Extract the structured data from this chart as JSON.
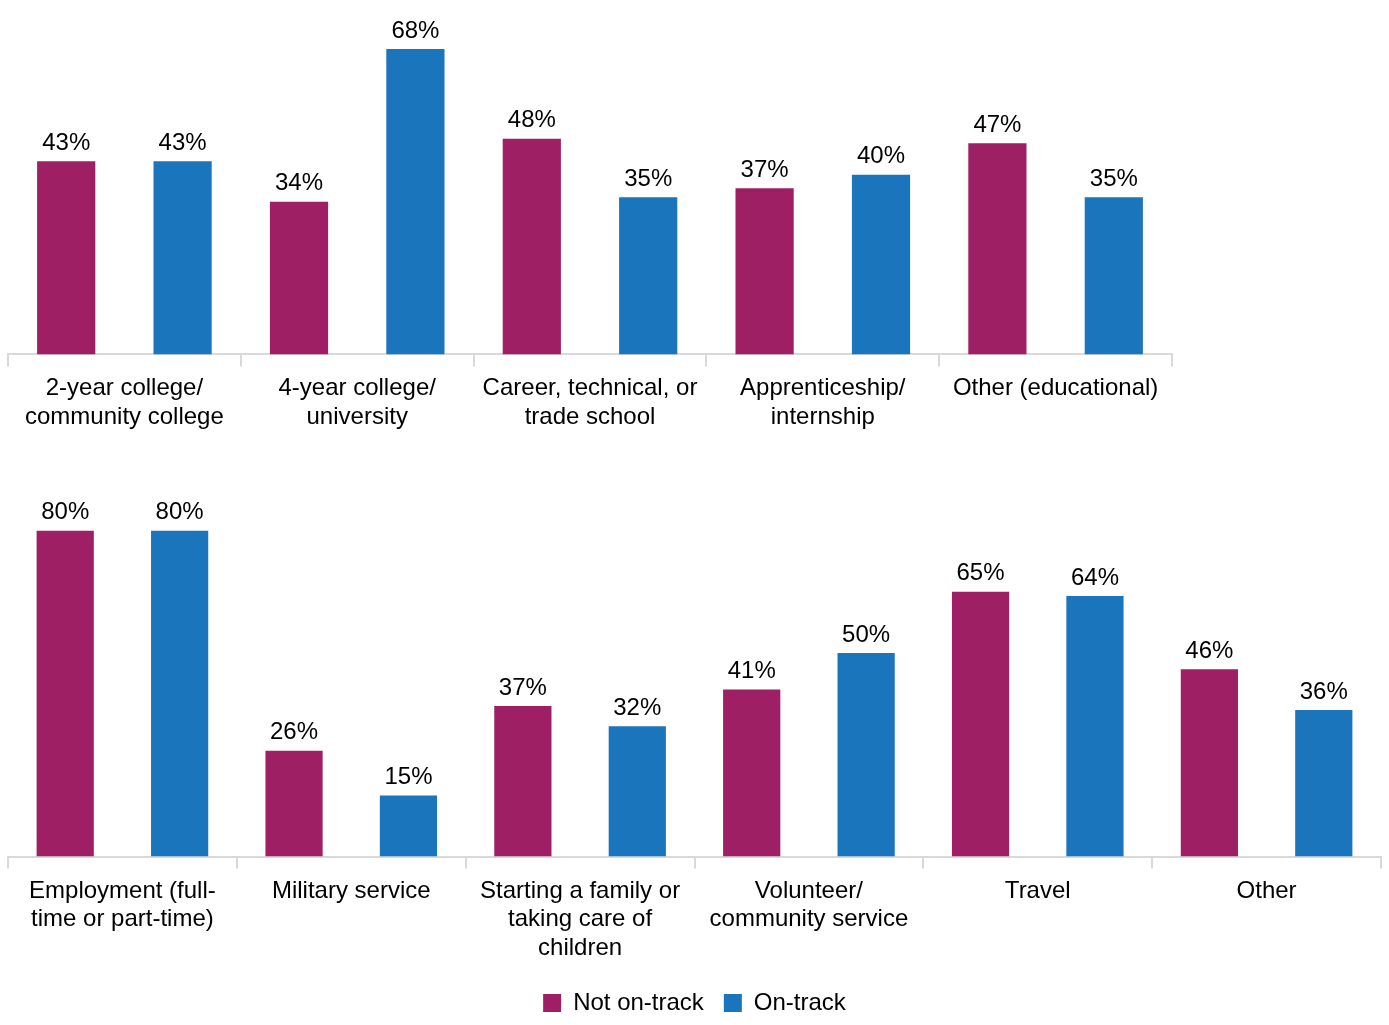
{
  "chart_data": [
    {
      "type": "bar",
      "categories": [
        "2-year college/ community college",
        "4-year college/ university",
        "Career, technical, or trade school",
        "Apprenticeship/ internship",
        "Other (educational)"
      ],
      "tick_labels": "x",
      "legend": false,
      "series": [
        {
          "color": "#9e1f63",
          "values": [
            43,
            34,
            48,
            37,
            47
          ],
          "value_labels": [
            "43%",
            "34%",
            "48%",
            "37%",
            "47%"
          ]
        },
        {
          "color": "#1b75bc",
          "values": [
            43,
            68,
            35,
            40,
            35
          ],
          "value_labels": [
            "43%",
            "68%",
            "35%",
            "40%",
            "35%"
          ]
        }
      ]
    },
    {
      "type": "bar",
      "categories": [
        "Employment (full-time or part-time)",
        "Military service",
        "Starting a family or taking care of children",
        "Volunteer/ community service",
        "Travel",
        "Other"
      ],
      "tick_labels": "x",
      "legend": "bottom",
      "series": [
        {
          "name": "Not on-track",
          "color": "#9e1f63",
          "values": [
            80,
            26,
            37,
            41,
            65,
            46
          ],
          "value_labels": [
            "80%",
            "26%",
            "37%",
            "41%",
            "65%",
            "46%"
          ]
        },
        {
          "name": "On-track",
          "color": "#1b75bc",
          "values": [
            80,
            15,
            32,
            50,
            64,
            36
          ],
          "value_labels": [
            "80%",
            "15%",
            "32%",
            "50%",
            "64%",
            "36%"
          ]
        }
      ]
    }
  ]
}
